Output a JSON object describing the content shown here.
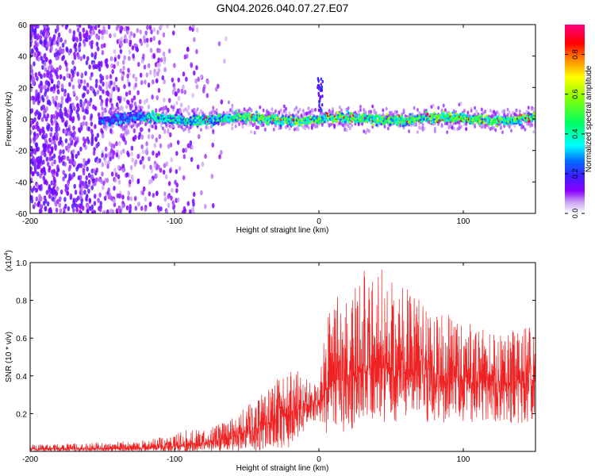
{
  "title": "GN04.2026.040.07.27.E07",
  "chart_data": [
    {
      "type": "heatmap",
      "xlabel": "Height of straight line (km)",
      "ylabel": "Frequency (Hz)",
      "xlim": [
        -200,
        150
      ],
      "ylim": [
        -60,
        60
      ],
      "x_ticks": [
        -200,
        -100,
        0,
        100
      ],
      "y_ticks": [
        -60,
        -40,
        -20,
        0,
        20,
        40,
        60
      ],
      "description_bands": [
        {
          "x_range": [
            -200,
            -120
          ],
          "freq_range": [
            -60,
            60
          ],
          "level": "low-purple scatter"
        },
        {
          "x_range": [
            -155,
            150
          ],
          "freq_range": [
            -6,
            6
          ],
          "level": "strong band 0.2-0.9"
        }
      ],
      "colorbar": {
        "label": "Normalized spectral amplitude",
        "range": [
          0.0,
          0.95
        ],
        "ticks": [
          0.0,
          0.2,
          0.4,
          0.6,
          0.8
        ],
        "tick_labels": [
          "0.0",
          "0.2",
          "0.4",
          "0.6",
          "0.8"
        ],
        "colors": [
          "#ffffff",
          "#cfa8f5",
          "#7a00ff",
          "#2040ff",
          "#00ffff",
          "#00ff40",
          "#ffff00",
          "#ff8000",
          "#ff0000",
          "#ff00ff"
        ]
      }
    },
    {
      "type": "line",
      "xlabel": "Height of straight line (km)",
      "ylabel": "SNR (10 * v/v)",
      "scale_label": "(x10",
      "scale_exp": "4",
      "scale_close": ")",
      "xlim": [
        -200,
        150
      ],
      "ylim": [
        0,
        1.0
      ],
      "x_ticks": [
        -200,
        -100,
        0,
        100
      ],
      "y_ticks": [
        0.2,
        0.4,
        0.6,
        0.8,
        1.0
      ],
      "y_tick_labels": [
        "0.2",
        "0.4",
        "0.6",
        "0.8",
        "1.0"
      ],
      "color": "#ee2222",
      "envelope": {
        "x": [
          -200,
          -160,
          -120,
          -100,
          -90,
          -80,
          -60,
          -40,
          -20,
          -5,
          0,
          5,
          15,
          25,
          35,
          50,
          65,
          80,
          100,
          120,
          150
        ],
        "mean": [
          0.012,
          0.014,
          0.018,
          0.025,
          0.04,
          0.04,
          0.08,
          0.13,
          0.2,
          0.26,
          0.25,
          0.33,
          0.4,
          0.42,
          0.44,
          0.44,
          0.42,
          0.4,
          0.38,
          0.37,
          0.35
        ],
        "upper": [
          0.035,
          0.045,
          0.06,
          0.09,
          0.12,
          0.11,
          0.18,
          0.3,
          0.45,
          0.38,
          0.34,
          0.7,
          0.85,
          0.88,
          1.0,
          0.97,
          0.84,
          0.74,
          0.7,
          0.64,
          0.66
        ],
        "lower": [
          0.0,
          0.0,
          0.0,
          0.0,
          0.0,
          0.0,
          0.0,
          0.0,
          0.02,
          0.16,
          0.16,
          0.05,
          0.1,
          0.12,
          0.15,
          0.15,
          0.16,
          0.15,
          0.15,
          0.16,
          0.14
        ]
      }
    }
  ]
}
